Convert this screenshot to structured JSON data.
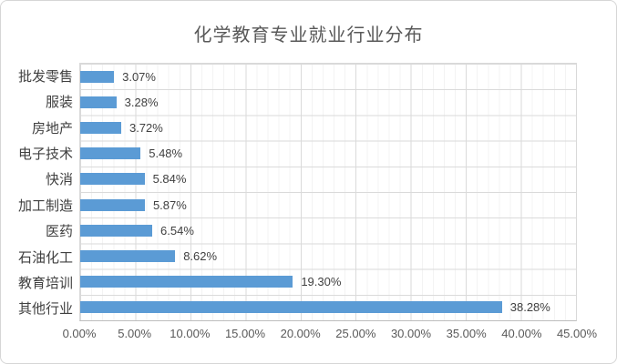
{
  "chart_data": {
    "type": "bar",
    "orientation": "horizontal",
    "title": "化学教育专业就业行业分布",
    "categories": [
      "批发零售",
      "服装",
      "房地产",
      "电子技术",
      "快消",
      "加工制造",
      "医药",
      "石油化工",
      "教育培训",
      "其他行业"
    ],
    "values": [
      3.07,
      3.28,
      3.72,
      5.48,
      5.84,
      5.87,
      6.54,
      8.62,
      19.3,
      38.28
    ],
    "data_labels": [
      "3.07%",
      "3.28%",
      "3.72%",
      "5.48%",
      "5.84%",
      "5.87%",
      "6.54%",
      "8.62%",
      "19.30%",
      "38.28%"
    ],
    "x_ticks": [
      "0.00%",
      "5.00%",
      "10.00%",
      "15.00%",
      "20.00%",
      "25.00%",
      "30.00%",
      "35.00%",
      "40.00%",
      "45.00%"
    ],
    "xlabel": "",
    "ylabel": "",
    "xlim": [
      0,
      45
    ],
    "grid": true,
    "legend_position": "none",
    "bar_color": "#5b9bd5",
    "title_color": "#595959",
    "label_color": "#404040",
    "tick_color": "#595959"
  }
}
